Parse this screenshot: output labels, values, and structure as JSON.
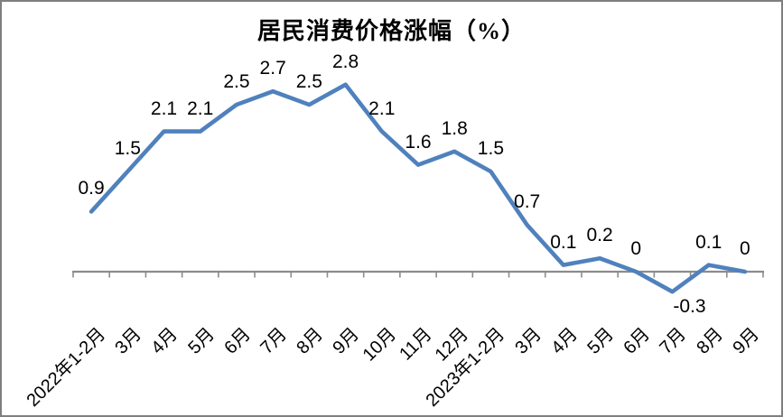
{
  "frame": {
    "background_color": "#FFFFFF",
    "border_color": "#7F7F7F"
  },
  "chart_data": {
    "type": "line",
    "title": "居民消费价格涨幅（%）",
    "categories": [
      "2022年1-2月",
      "3月",
      "4月",
      "5月",
      "6月",
      "7月",
      "8月",
      "9月",
      "10月",
      "11月",
      "12月",
      "2023年1-2月",
      "3月",
      "4月",
      "5月",
      "6月",
      "7月",
      "8月",
      "9月"
    ],
    "values": [
      0.9,
      1.5,
      2.1,
      2.1,
      2.5,
      2.7,
      2.5,
      2.8,
      2.1,
      1.6,
      1.8,
      1.5,
      0.7,
      0.1,
      0.2,
      0,
      -0.3,
      0.1,
      0
    ],
    "data_labels": [
      "0.9",
      "1.5",
      "2.1",
      "2.1",
      "2.5",
      "2.7",
      "2.5",
      "2.8",
      "2.1",
      "1.6",
      "1.8",
      "1.5",
      "0.7",
      "0.1",
      "0.2",
      "0",
      "-0.3",
      "0.1",
      "0"
    ],
    "xlabel": "",
    "ylabel": "",
    "ylim": [
      -0.5,
      3.0
    ],
    "grid": false,
    "legend": "none",
    "line_color": "#4F81BD",
    "axis_color": "#8C8C8C",
    "text_color": "#000000"
  }
}
